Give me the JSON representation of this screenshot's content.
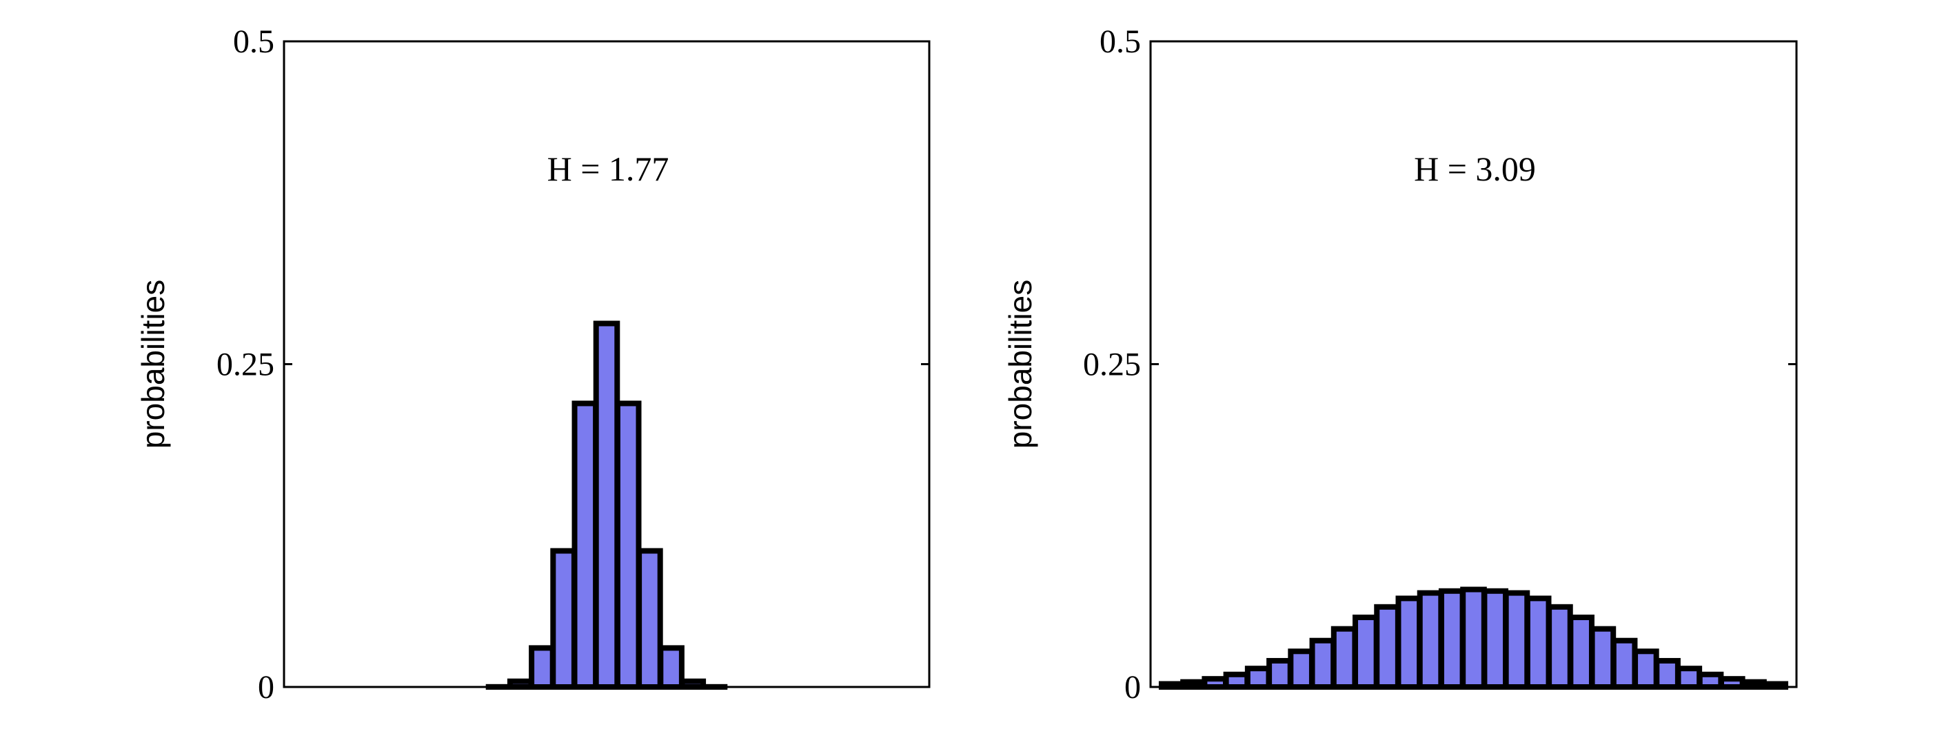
{
  "chart_data": [
    {
      "type": "bar",
      "ylabel": "probabilities",
      "ylim": [
        0,
        0.5
      ],
      "yticks": [
        0,
        0.25,
        0.5
      ],
      "ytick_labels": [
        "0",
        "0.25",
        "0.5"
      ],
      "annotation": "H = 1.77",
      "bar_color": "#7b7bef",
      "edge_color": "#000000",
      "xlim": [
        0,
        30
      ],
      "x": [
        1,
        2,
        3,
        4,
        5,
        6,
        7,
        8,
        9,
        10,
        11,
        12,
        13,
        14,
        15,
        16,
        17,
        18,
        19,
        20,
        21,
        22,
        23,
        24,
        25,
        26,
        27,
        28,
        29
      ],
      "values": [
        0,
        0,
        0,
        0,
        0,
        0,
        0,
        0,
        0,
        0.0001,
        0.0044,
        0.0302,
        0.1054,
        0.2196,
        0.2815,
        0.2196,
        0.1054,
        0.0302,
        0.0044,
        0.0001,
        0,
        0,
        0,
        0,
        0,
        0,
        0,
        0,
        0
      ]
    },
    {
      "type": "bar",
      "ylabel": "probabilities",
      "ylim": [
        0,
        0.5
      ],
      "yticks": [
        0,
        0.25,
        0.5
      ],
      "ytick_labels": [
        "0",
        "0.25",
        "0.5"
      ],
      "annotation": "H = 3.09",
      "bar_color": "#7b7bef",
      "edge_color": "#000000",
      "xlim": [
        0,
        30
      ],
      "x": [
        1,
        2,
        3,
        4,
        5,
        6,
        7,
        8,
        9,
        10,
        11,
        12,
        13,
        14,
        15,
        16,
        17,
        18,
        19,
        20,
        21,
        22,
        23,
        24,
        25,
        26,
        27,
        28,
        29
      ],
      "values": [
        0.0024,
        0.0039,
        0.0063,
        0.0097,
        0.0143,
        0.0203,
        0.0276,
        0.0359,
        0.045,
        0.0539,
        0.062,
        0.0686,
        0.0728,
        0.0743,
        0.0755,
        0.0743,
        0.0728,
        0.0686,
        0.062,
        0.0539,
        0.045,
        0.0359,
        0.0276,
        0.0203,
        0.0143,
        0.0097,
        0.0063,
        0.0039,
        0.0024
      ]
    }
  ]
}
